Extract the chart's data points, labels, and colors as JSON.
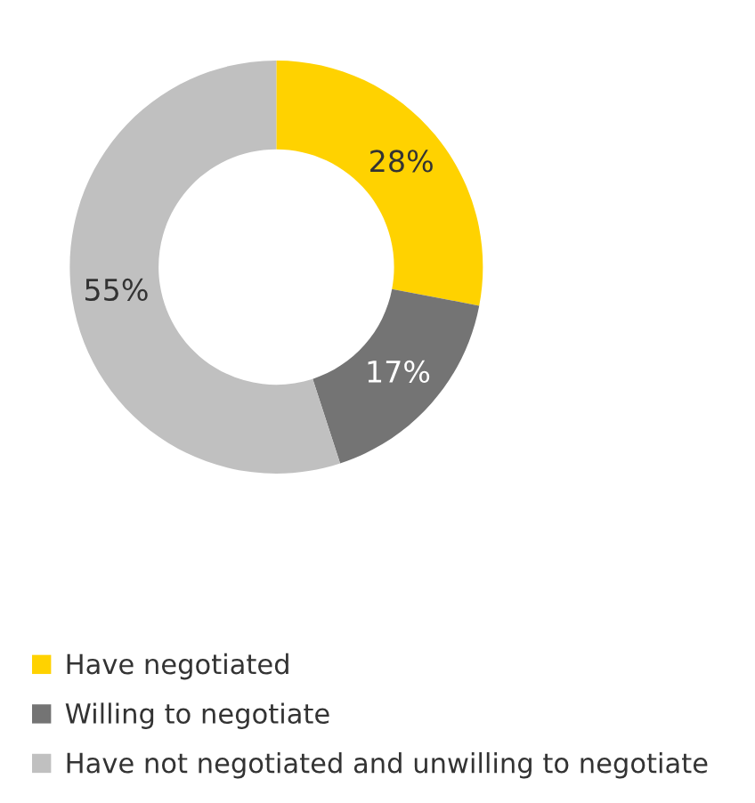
{
  "chart_data": {
    "type": "donut",
    "categories": [
      "Have negotiated",
      "Willing to negotiate",
      "Have not negotiated and unwilling to negotiate"
    ],
    "values": [
      28,
      17,
      55
    ],
    "colors": [
      "#ffd200",
      "#747474",
      "#c0c0c0"
    ],
    "value_labels": [
      "28%",
      "17%",
      "55%"
    ],
    "legend": "bottom"
  }
}
